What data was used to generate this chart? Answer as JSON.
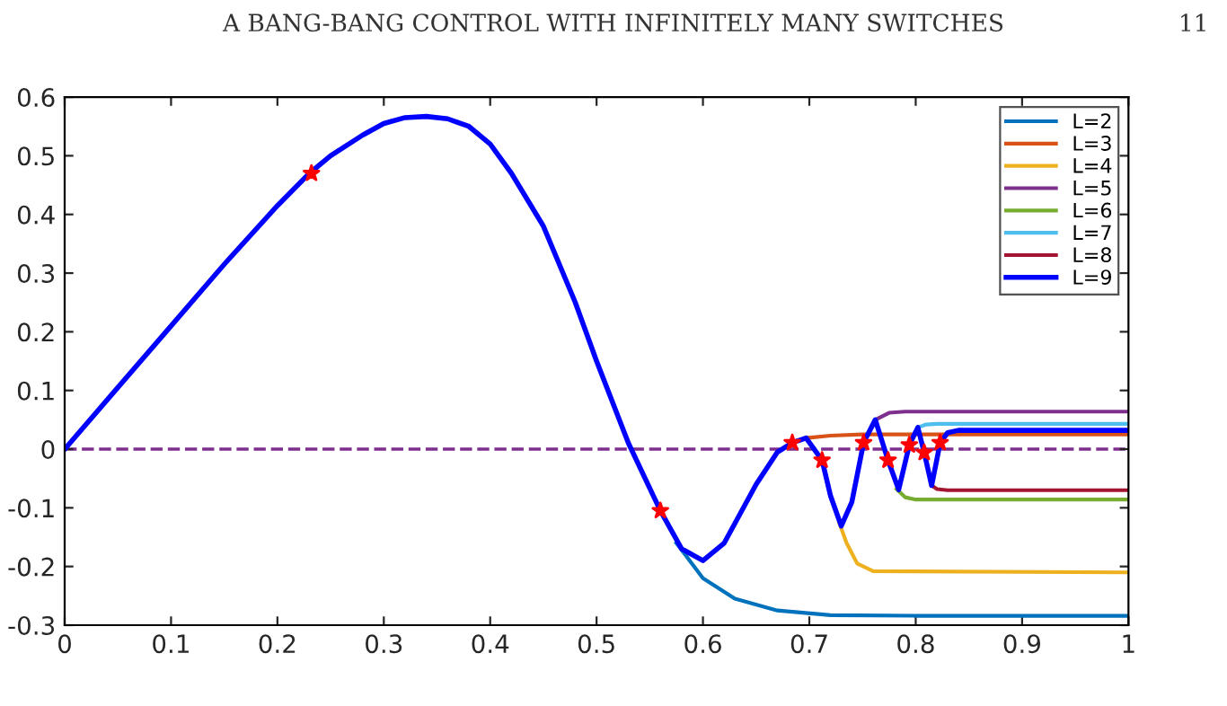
{
  "chart_data": {
    "type": "line",
    "annotations": [
      "A BANG-BANG CONTROL WITH INFINITELY MANY SWITCHES",
      "11"
    ],
    "xlim": [
      0,
      1
    ],
    "ylim": [
      -0.3,
      0.6
    ],
    "xticks": [
      0,
      0.1,
      0.2,
      0.3,
      0.4,
      0.5,
      0.6,
      0.7,
      0.8,
      0.9,
      1
    ],
    "yticks": [
      -0.3,
      -0.2,
      -0.1,
      0,
      0.1,
      0.2,
      0.3,
      0.4,
      0.5,
      0.6
    ],
    "grid": false,
    "legend": "top right",
    "line_style": "solid",
    "marker": "none",
    "ref_lines": [
      {
        "axis": "y",
        "value": 0,
        "color": "#7e2f8e",
        "line_style": "dashed"
      }
    ],
    "series": [
      {
        "name": "L=2",
        "color": "#0072bd",
        "x": [
          0.575,
          0.6,
          0.63,
          0.67,
          0.72,
          0.8,
          1
        ],
        "values": [
          -0.16,
          -0.22,
          -0.255,
          -0.275,
          -0.283,
          -0.284,
          -0.284
        ]
      },
      {
        "name": "L=3",
        "color": "#d95319",
        "x": [
          0.697,
          0.72,
          0.75,
          1
        ],
        "values": [
          0.019,
          0.023,
          0.025,
          0.025
        ]
      },
      {
        "name": "L=4",
        "color": "#edb120",
        "x": [
          0.728,
          0.735,
          0.745,
          0.76,
          1
        ],
        "values": [
          -0.125,
          -0.16,
          -0.195,
          -0.208,
          -0.21
        ]
      },
      {
        "name": "L=5",
        "color": "#7e2f8e",
        "x": [
          0.762,
          0.775,
          0.79,
          1
        ],
        "values": [
          0.05,
          0.062,
          0.064,
          0.064
        ]
      },
      {
        "name": "L=6",
        "color": "#77ac30",
        "x": [
          0.782,
          0.79,
          0.8,
          1
        ],
        "values": [
          -0.068,
          -0.082,
          -0.086,
          -0.086
        ]
      },
      {
        "name": "L=7",
        "color": "#4dbeee",
        "x": [
          0.802,
          0.81,
          0.82,
          1
        ],
        "values": [
          0.037,
          0.042,
          0.043,
          0.043
        ]
      },
      {
        "name": "L=8",
        "color": "#a2142f",
        "x": [
          0.815,
          0.82,
          0.83,
          1
        ],
        "values": [
          -0.062,
          -0.068,
          -0.07,
          -0.07
        ]
      },
      {
        "name": "L=9",
        "color": "#0000ff",
        "x": [
          0,
          0.05,
          0.1,
          0.15,
          0.2,
          0.23,
          0.25,
          0.28,
          0.3,
          0.32,
          0.34,
          0.36,
          0.38,
          0.4,
          0.42,
          0.45,
          0.48,
          0.5,
          0.53,
          0.56,
          0.58,
          0.6,
          0.62,
          0.65,
          0.67,
          0.684,
          0.697,
          0.712,
          0.72,
          0.73,
          0.74,
          0.751,
          0.762,
          0.774,
          0.784,
          0.794,
          0.802,
          0.808,
          0.815,
          0.823,
          0.83,
          0.84,
          1
        ],
        "values": [
          0,
          0.105,
          0.21,
          0.315,
          0.415,
          0.47,
          0.5,
          0.535,
          0.555,
          0.565,
          0.567,
          0.563,
          0.55,
          0.52,
          0.47,
          0.38,
          0.25,
          0.15,
          0.01,
          -0.105,
          -0.17,
          -0.19,
          -0.16,
          -0.06,
          -0.005,
          0.011,
          0.019,
          -0.019,
          -0.08,
          -0.131,
          -0.09,
          0.011,
          0.05,
          -0.019,
          -0.069,
          0.007,
          0.037,
          -0.006,
          -0.062,
          0.011,
          0.028,
          0.032,
          0.032
        ]
      },
      {
        "type": "scatter",
        "color": "#ff0000",
        "marker": "star",
        "x": [
          0.232,
          0.56,
          0.684,
          0.712,
          0.751,
          0.774,
          0.794,
          0.808,
          0.823
        ],
        "values": [
          0.47,
          -0.105,
          0.011,
          -0.019,
          0.011,
          -0.019,
          0.007,
          -0.006,
          0.011
        ]
      }
    ]
  }
}
